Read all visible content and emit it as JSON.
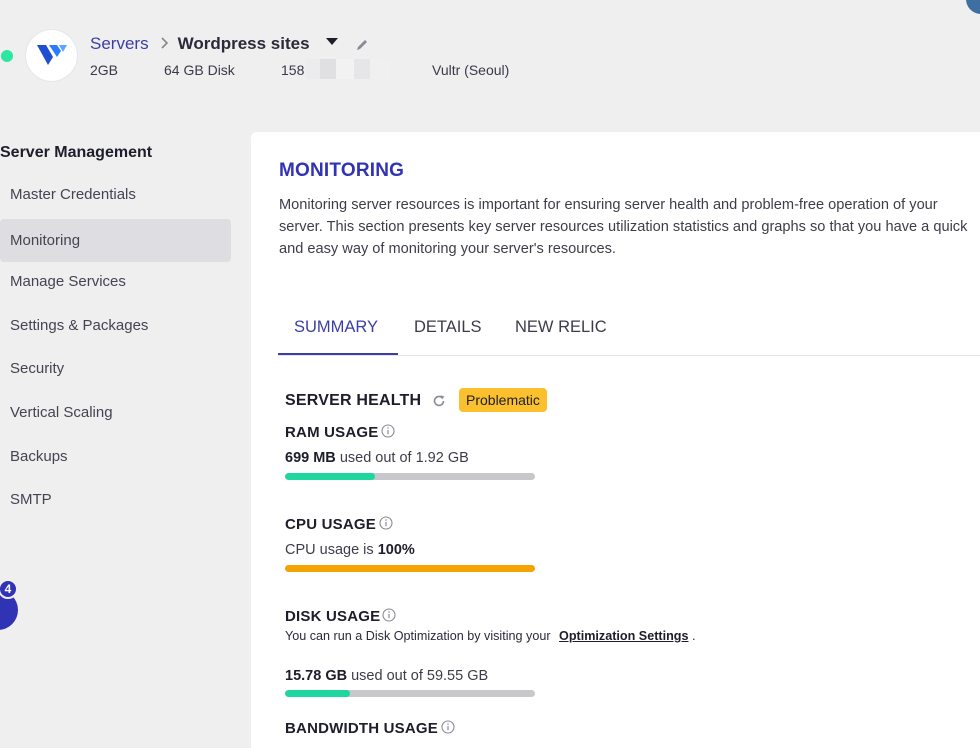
{
  "header": {
    "breadcrumb_servers": "Servers",
    "breadcrumb_separator": ">",
    "app_name": "Wordpress sites",
    "ram": "2GB",
    "disk": "64 GB Disk",
    "ip_prefix": "158",
    "provider": "Vultr (Seoul)",
    "status_color": "#2ee6a1"
  },
  "sidebar": {
    "title": "Server Management",
    "items": [
      {
        "label": "Master Credentials",
        "active": false
      },
      {
        "label": "Monitoring",
        "active": true
      },
      {
        "label": "Manage Services",
        "active": false
      },
      {
        "label": "Settings & Packages",
        "active": false
      },
      {
        "label": "Security",
        "active": false
      },
      {
        "label": "Vertical Scaling",
        "active": false
      },
      {
        "label": "Backups",
        "active": false
      },
      {
        "label": "SMTP",
        "active": false
      }
    ],
    "notification_count": "4"
  },
  "main": {
    "title": "MONITORING",
    "description": "Monitoring server resources is important for ensuring server health and problem-free operation of your server. This section presents key server resources utilization statistics and graphs so that you have a quick and easy way of monitoring your server's resources.",
    "tabs": [
      {
        "label": "SUMMARY",
        "active": true
      },
      {
        "label": "DETAILS",
        "active": false
      },
      {
        "label": "NEW RELIC",
        "active": false
      }
    ],
    "server_health": {
      "title": "SERVER HEALTH",
      "status": "Problematic",
      "status_color": "#fbc02d"
    },
    "ram": {
      "title": "RAM USAGE",
      "used": "699 MB",
      "suffix": "used out of 1.92 GB",
      "fraction": 0.36,
      "color": "#1fd6a0"
    },
    "cpu": {
      "title": "CPU USAGE",
      "prefix": "CPU usage is",
      "value": "100%",
      "fraction": 1.0,
      "color": "#f5a300"
    },
    "disk": {
      "title": "DISK USAGE",
      "note": "You can run a Disk Optimization by visiting your",
      "link": "Optimization Settings",
      "note_end": ".",
      "used": "15.78 GB",
      "suffix": "used out of 59.55 GB",
      "fraction": 0.26,
      "color": "#1fd6a0"
    },
    "bandwidth": {
      "title": "BANDWIDTH USAGE"
    }
  }
}
